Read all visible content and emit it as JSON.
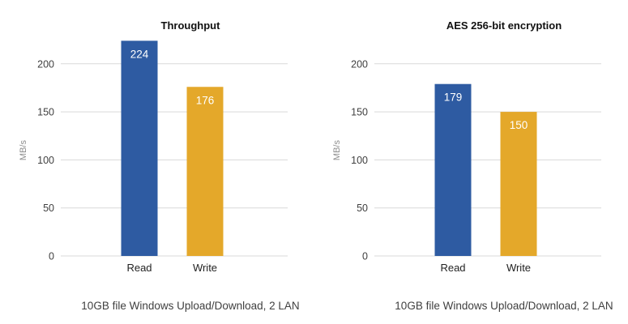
{
  "chart_data": [
    {
      "type": "bar",
      "title": "Throughput",
      "ylabel": "MB/s",
      "xlabel": "",
      "categories": [
        "Read",
        "Write"
      ],
      "values": [
        224,
        176
      ],
      "colors": [
        "#2e5ba2",
        "#e4a82a"
      ],
      "ylim": [
        0,
        220
      ],
      "yticks": [
        0,
        50,
        100,
        150,
        200
      ],
      "grid": true,
      "caption": "10GB file Windows Upload/Download, 2 LAN"
    },
    {
      "type": "bar",
      "title": "AES 256-bit encryption",
      "ylabel": "MB/s",
      "xlabel": "",
      "categories": [
        "Read",
        "Write"
      ],
      "values": [
        179,
        150
      ],
      "colors": [
        "#2e5ba2",
        "#e4a82a"
      ],
      "ylim": [
        0,
        220
      ],
      "yticks": [
        0,
        50,
        100,
        150,
        200
      ],
      "grid": true,
      "caption": "10GB file Windows Upload/Download, 2 LAN"
    }
  ]
}
